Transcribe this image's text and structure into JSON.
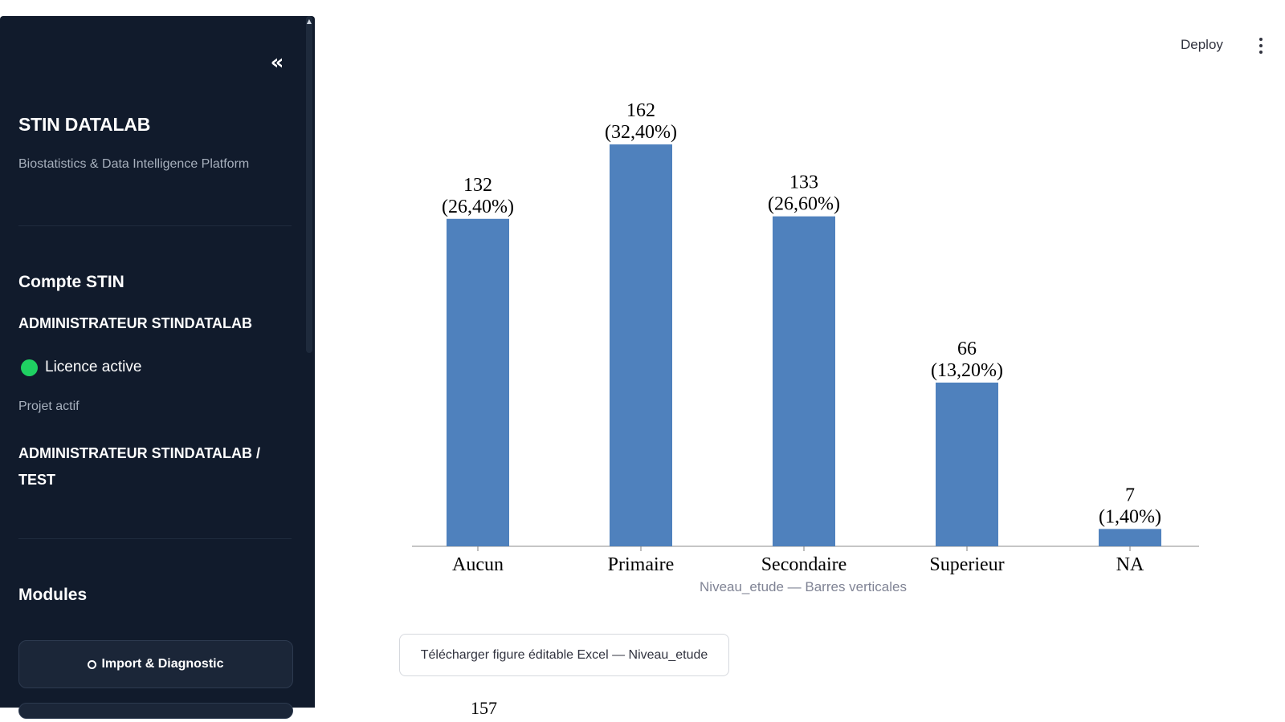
{
  "sidebar": {
    "collapse_icon": "double-chevron-left-icon",
    "brand_title": "STIN DATALAB",
    "brand_subtitle": "Biostatistics & Data Intelligence Platform",
    "account_section_title": "Compte STIN",
    "account_name": "ADMINISTRATEUR STINDATALAB",
    "licence_status": "Licence active",
    "licence_color": "#1fd162",
    "project_label": "Projet actif",
    "project_name": "ADMINISTRATEUR STINDATALAB / TEST",
    "modules_title": "Modules",
    "modules": [
      {
        "label": "Import & Diagnostic",
        "icon": "circle-icon"
      }
    ]
  },
  "header": {
    "deploy_label": "Deploy",
    "menu_icon": "vertical-dots-icon"
  },
  "chart_data": {
    "type": "bar",
    "categories": [
      "Aucun",
      "Primaire",
      "Secondaire",
      "Superieur",
      "NA"
    ],
    "values": [
      132,
      162,
      133,
      66,
      7
    ],
    "value_labels": [
      "132",
      "162",
      "133",
      "66",
      "7"
    ],
    "percent_labels": [
      "(26,40%)",
      "(32,40%)",
      "(26,60%)",
      "(13,20%)",
      "(1,40%)"
    ],
    "bar_color": "#4f81bd",
    "grid": false,
    "legend": "none"
  },
  "chart_caption": "Niveau_etude — Barres verticales",
  "download_button_label": "Télécharger figure éditable Excel — Niveau_etude",
  "next_figure_partial_label": "157"
}
